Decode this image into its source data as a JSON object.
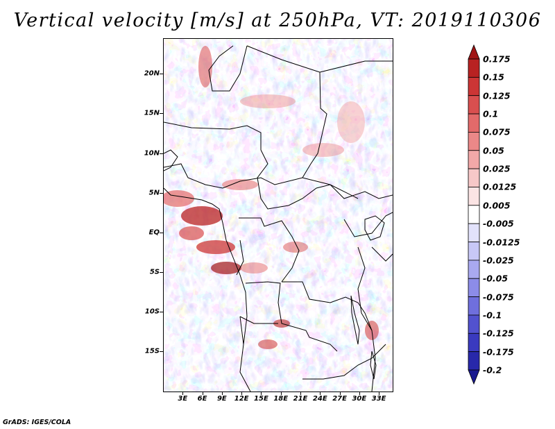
{
  "title": "Vertical velocity [m/s] at 250hPa, VT: 2019110306",
  "credit": "GrADS: IGES/COLA",
  "map": {
    "lat_labels": [
      "20N",
      "15N",
      "10N",
      "5N",
      "EQ",
      "5S",
      "10S",
      "15S"
    ],
    "lat_values": [
      20,
      15,
      10,
      5,
      0,
      -5,
      -10,
      -15
    ],
    "lon_labels": [
      "3E",
      "6E",
      "9E",
      "12E",
      "15E",
      "18E",
      "21E",
      "24E",
      "27E",
      "30E",
      "33E"
    ],
    "lon_values": [
      3,
      6,
      9,
      12,
      15,
      18,
      21,
      24,
      27,
      30,
      33
    ],
    "lat_range": [
      -20,
      24.5
    ],
    "lon_range": [
      0,
      35
    ]
  },
  "colorbar": {
    "labels": [
      "0.175",
      "0.15",
      "0.125",
      "0.1",
      "0.075",
      "0.05",
      "0.025",
      "0.0125",
      "0.005",
      "-0.005",
      "-0.0125",
      "-0.025",
      "-0.05",
      "-0.075",
      "-0.1",
      "-0.125",
      "-0.175",
      "-0.2"
    ],
    "colors": [
      "#a01515",
      "#b82222",
      "#cc3535",
      "#d94f4f",
      "#e36a6a",
      "#eb8888",
      "#f2a8a8",
      "#f7c8c8",
      "#fbe4e4",
      "#ffffff",
      "#e2e2fb",
      "#c8c8f7",
      "#a9a9f0",
      "#8c8ce8",
      "#6f6fdd",
      "#5252cf",
      "#3a3abf",
      "#2828aa",
      "#1a1a90"
    ]
  }
}
